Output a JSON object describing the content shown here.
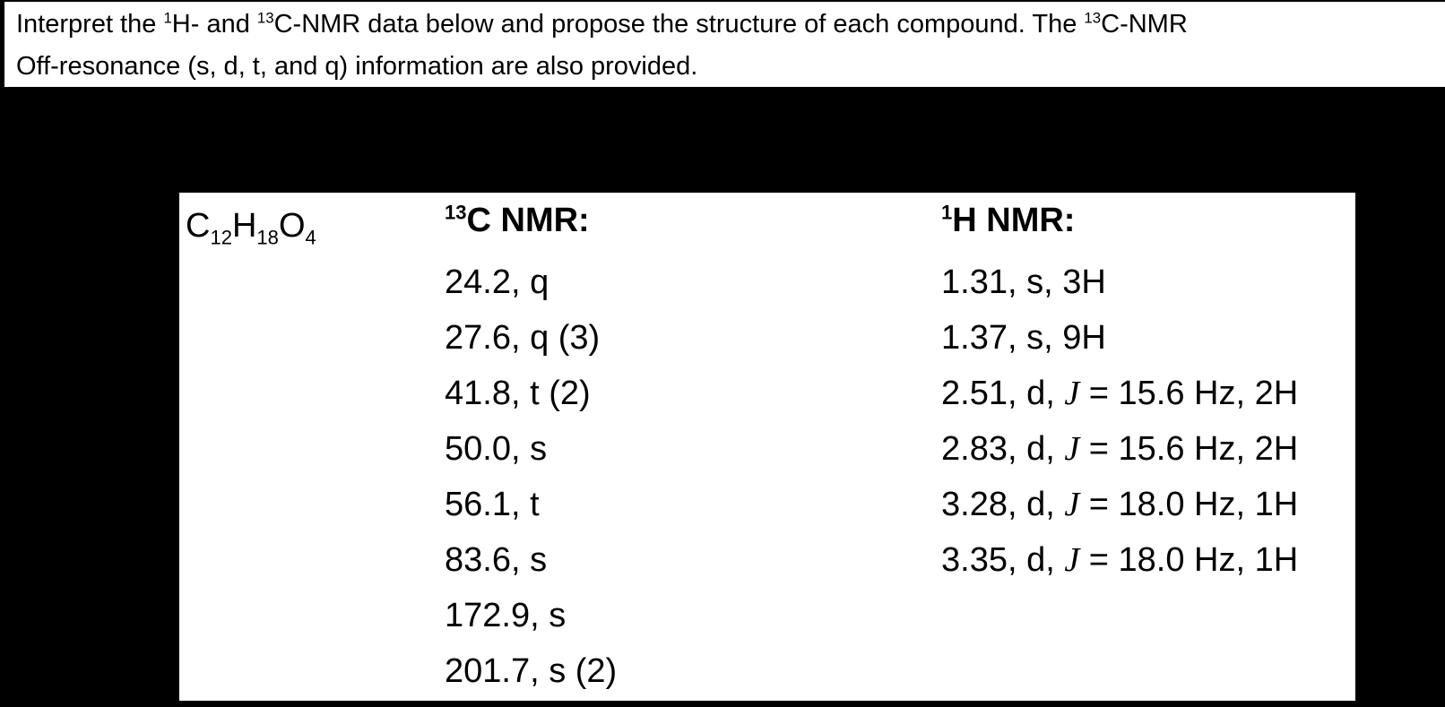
{
  "page": {
    "background_color": "#000000",
    "panel_color": "#ffffff",
    "text_color": "#000000"
  },
  "header": {
    "line1": [
      {
        "t": "Interpret the "
      },
      {
        "sup": "1"
      },
      {
        "t": "H- and "
      },
      {
        "sup": "13"
      },
      {
        "t": "C-NMR data below and propose the structure of each compound. The "
      },
      {
        "sup": "13"
      },
      {
        "t": "C-NMR"
      }
    ],
    "line2": [
      {
        "t": "Off-resonance (s, d, t, and q) information are also provided."
      }
    ]
  },
  "compound": {
    "formula": [
      {
        "t": "C"
      },
      {
        "sub": "12"
      },
      {
        "t": "H"
      },
      {
        "sub": "18"
      },
      {
        "t": "O"
      },
      {
        "sub": "4"
      }
    ],
    "c13": {
      "heading": [
        {
          "sup": "13"
        },
        {
          "t": "C NMR:"
        }
      ],
      "peaks": [
        "24.2, q",
        "27.6, q (3)",
        "41.8, t (2)",
        "50.0, s",
        "56.1, t",
        "83.6, s",
        "172.9, s",
        "201.7, s (2)"
      ]
    },
    "h1": {
      "heading": [
        {
          "sup": "1"
        },
        {
          "t": "H NMR:"
        }
      ],
      "peaks": [
        [
          {
            "t": "1.31, s, 3H"
          }
        ],
        [
          {
            "t": "1.37, s, 9H"
          }
        ],
        [
          {
            "t": "2.51, d, "
          },
          {
            "i": "J"
          },
          {
            "t": " = 15.6 Hz, 2H"
          }
        ],
        [
          {
            "t": "2.83, d, "
          },
          {
            "i": "J"
          },
          {
            "t": " = 15.6 Hz, 2H"
          }
        ],
        [
          {
            "t": "3.28, d, "
          },
          {
            "i": "J"
          },
          {
            "t": " = 18.0 Hz, 1H"
          }
        ],
        [
          {
            "t": "3.35, d, "
          },
          {
            "i": "J"
          },
          {
            "t": " = 18.0 Hz, 1H"
          }
        ]
      ]
    }
  }
}
